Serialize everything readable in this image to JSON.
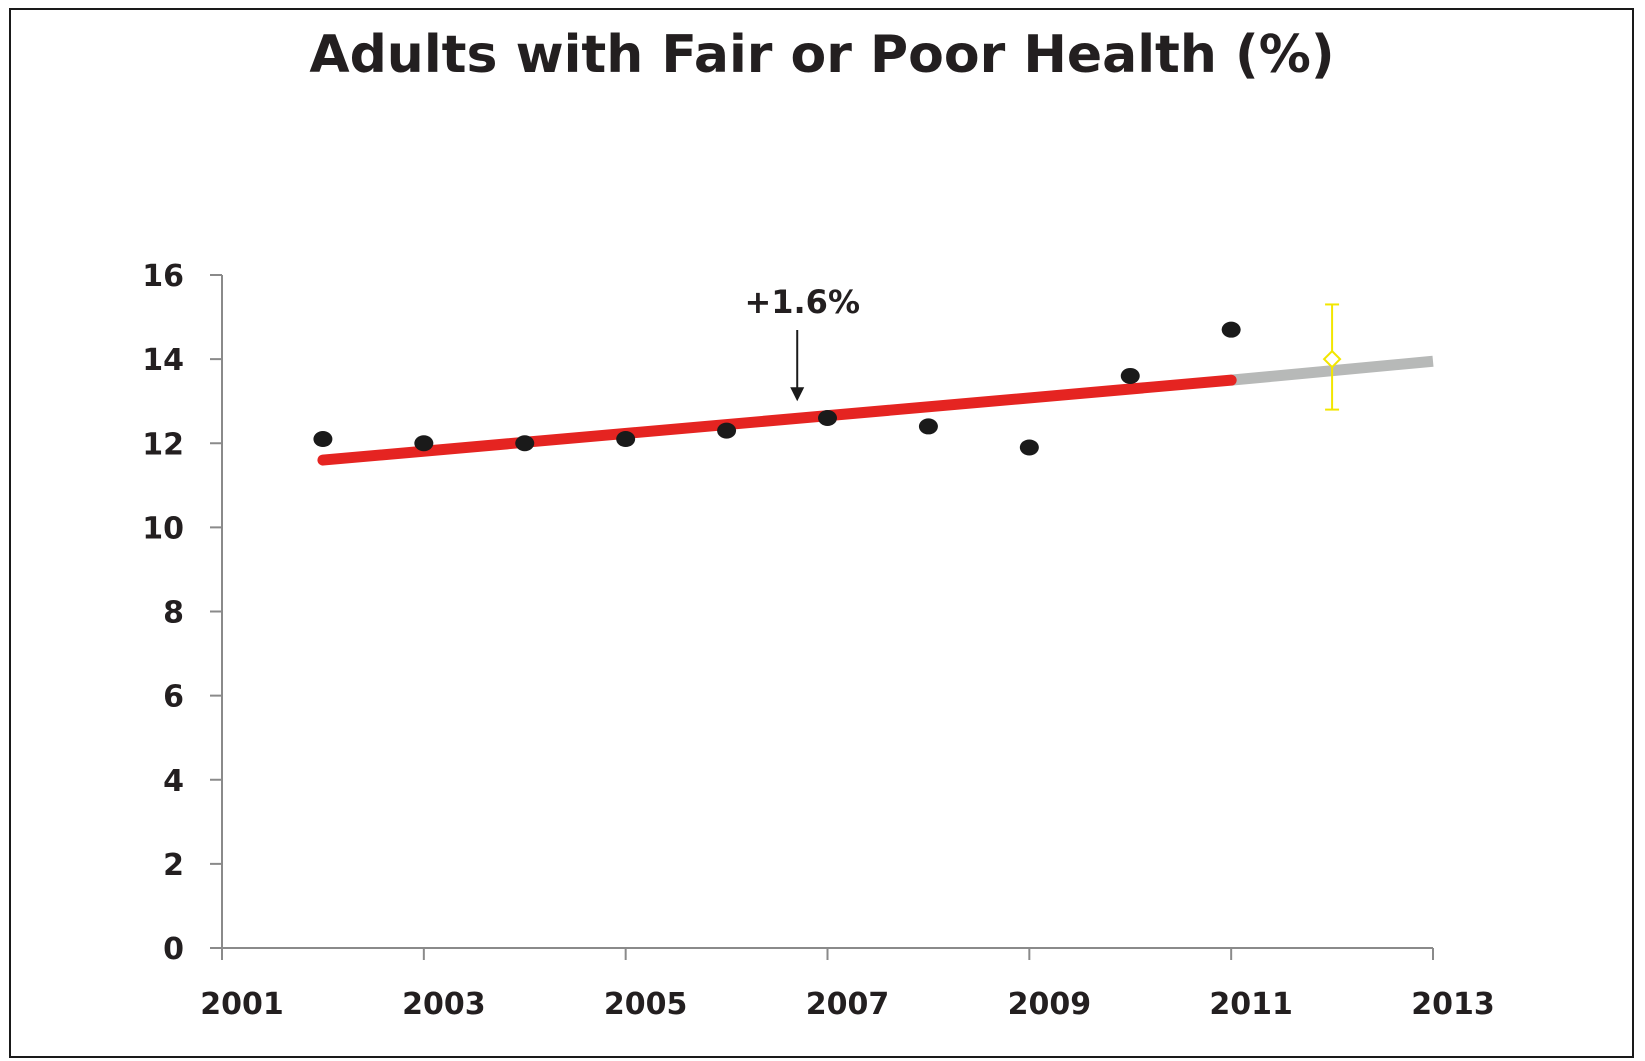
{
  "chart_data": {
    "type": "scatter",
    "title": "Adults with Fair or Poor Health (%)",
    "xlabel": "",
    "ylabel": "",
    "xlim": [
      2001,
      2013
    ],
    "ylim": [
      0,
      16
    ],
    "x_ticks": [
      "2001",
      "2003",
      "2005",
      "2007",
      "2009",
      "2011",
      "2013"
    ],
    "y_ticks": [
      "0",
      "2",
      "4",
      "6",
      "8",
      "10",
      "12",
      "14",
      "16"
    ],
    "grid": false,
    "legend": "none",
    "points": [
      {
        "x": 2002,
        "y": 12.1
      },
      {
        "x": 2003,
        "y": 12.0
      },
      {
        "x": 2004,
        "y": 12.0
      },
      {
        "x": 2005,
        "y": 12.1
      },
      {
        "x": 2006,
        "y": 12.3
      },
      {
        "x": 2007,
        "y": 12.6
      },
      {
        "x": 2008,
        "y": 12.4
      },
      {
        "x": 2009,
        "y": 11.9
      },
      {
        "x": 2010,
        "y": 13.6
      },
      {
        "x": 2011,
        "y": 14.7
      }
    ],
    "trend_line": {
      "x": [
        2002,
        2011
      ],
      "y": [
        11.6,
        13.5
      ],
      "color": "#e52421"
    },
    "projection_line": {
      "x": [
        2011,
        2013
      ],
      "y": [
        13.5,
        13.95
      ],
      "color": "#b7b9b8"
    },
    "projected_point": {
      "x": 2012,
      "y": 14.0,
      "error_low": 12.8,
      "error_high": 15.3,
      "color": "#f2e600"
    },
    "annotation": {
      "text": "+1.6%",
      "x": 2006.7,
      "y": 12.95
    },
    "colors": {
      "points": "#1a1a1a",
      "axis": "#8a8a8a",
      "text": "#231f20"
    }
  }
}
